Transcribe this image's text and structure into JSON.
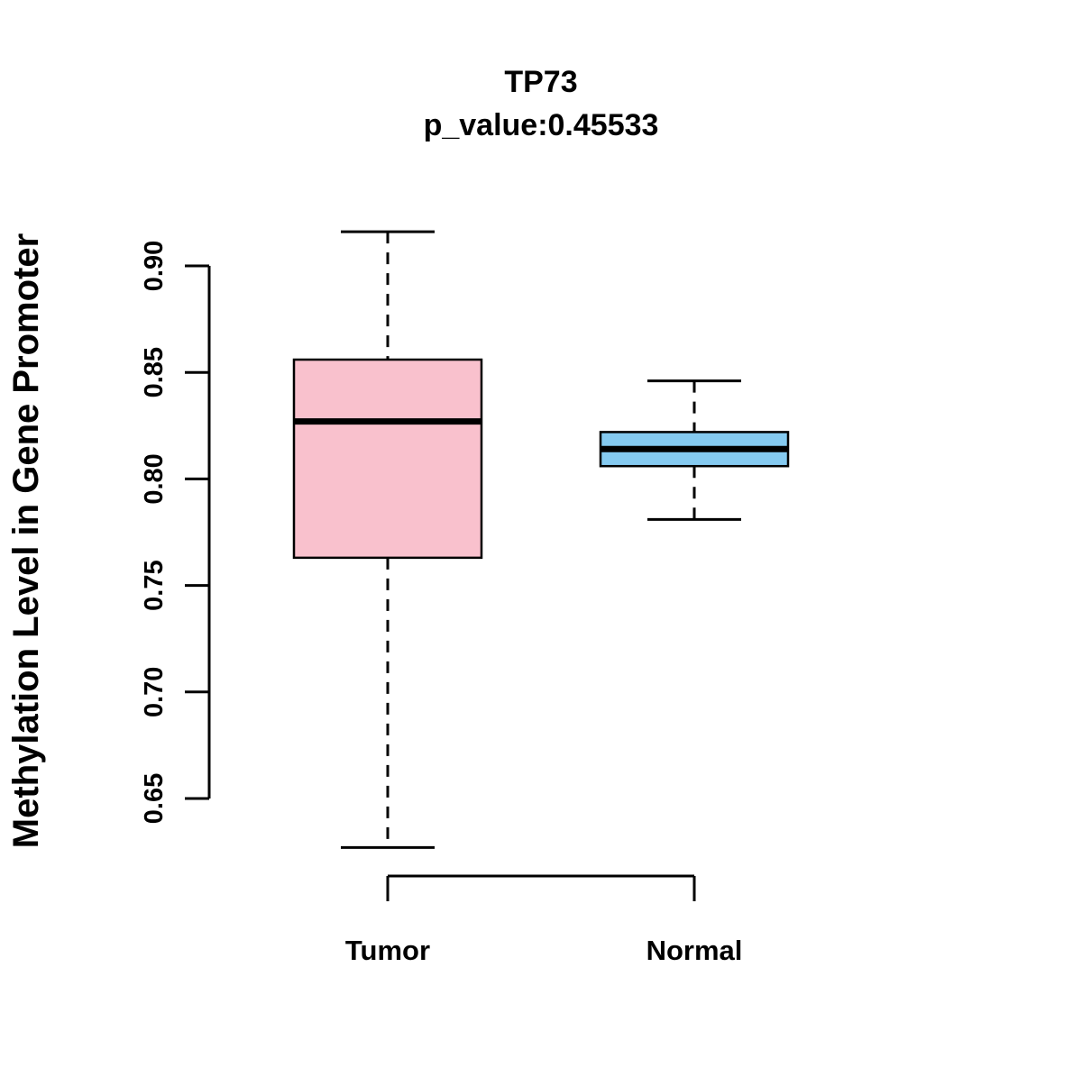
{
  "title": "TP73",
  "subtitle": "p_value:0.45533",
  "chart_data": {
    "type": "boxplot",
    "title": "TP73",
    "subtitle": "p_value:0.45533",
    "ylabel": "Methylation Level in Gene Promoter",
    "xlabel": "",
    "categories": [
      "Tumor",
      "Normal"
    ],
    "yticks": [
      0.65,
      0.7,
      0.75,
      0.8,
      0.85,
      0.9
    ],
    "ylim": [
      0.62,
      0.92
    ],
    "grid": false,
    "legend": "none",
    "colors": {
      "tumor_box": "#F9C1CD",
      "normal_box": "#85CAF0",
      "line": "#000000",
      "background": "#FFFFFF"
    },
    "series": [
      {
        "name": "Tumor",
        "box_color": "#F9C1CD",
        "whisker_low": 0.627,
        "q1": 0.763,
        "median": 0.827,
        "q3": 0.856,
        "whisker_high": 0.916
      },
      {
        "name": "Normal",
        "box_color": "#85CAF0",
        "whisker_low": 0.781,
        "q1": 0.806,
        "median": 0.814,
        "q3": 0.822,
        "whisker_high": 0.846
      }
    ]
  }
}
